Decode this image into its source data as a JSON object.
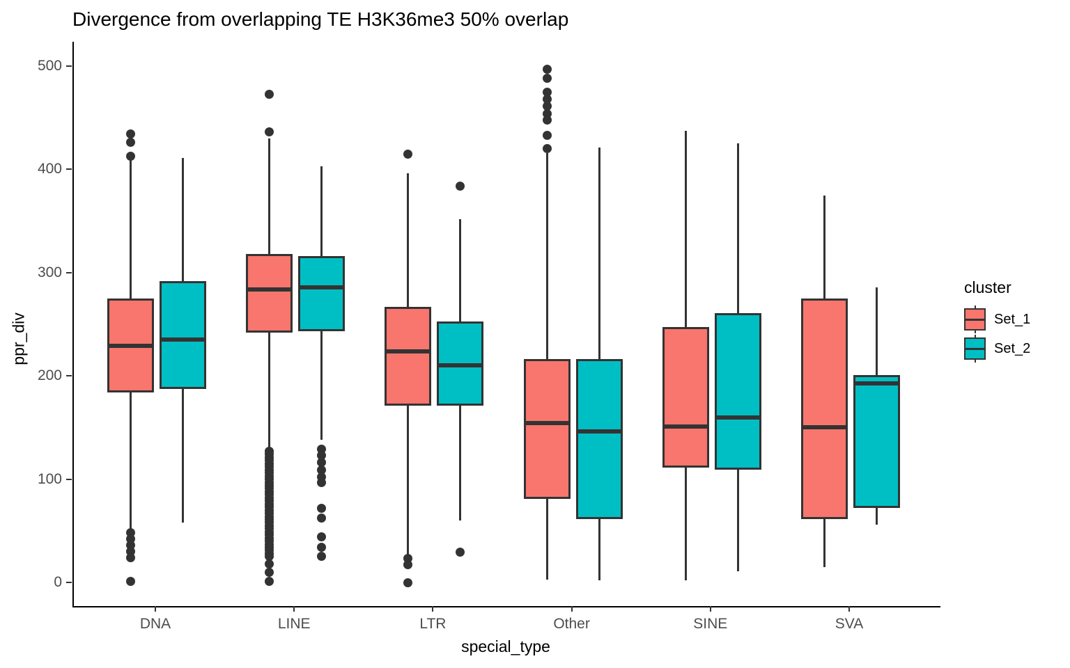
{
  "chart_data": {
    "type": "boxplot",
    "title": "Divergence from overlapping TE H3K36me3 50% overlap",
    "xlabel": "special_type",
    "ylabel": "ppr_div",
    "ylim": [
      0,
      500
    ],
    "yticks": [
      0,
      100,
      200,
      300,
      400,
      500
    ],
    "categories": [
      "DNA",
      "LINE",
      "LTR",
      "Other",
      "SINE",
      "SVA"
    ],
    "legend": {
      "title": "cluster",
      "position": "right"
    },
    "style": {
      "box_border_color": "#333333",
      "axis_line_color": "#000000",
      "tick_label_color": "#4D4D4D",
      "grid": "off"
    },
    "series": [
      {
        "name": "Set_1",
        "color": "#F8766D",
        "boxes": [
          {
            "category": "DNA",
            "whisker_low": 50,
            "q1": 184,
            "median": 229,
            "q3": 275,
            "whisker_high": 412,
            "outliers_high": [
              434,
              426,
              413
            ],
            "outliers_low": [
              48,
              42,
              36,
              30,
              24,
              1
            ]
          },
          {
            "category": "LINE",
            "whisker_low": 129,
            "q1": 242,
            "median": 284,
            "q3": 318,
            "whisker_high": 430,
            "outliers_high": [
              473,
              436
            ],
            "outliers_low": [
              127,
              124,
              121,
              118,
              115,
              112,
              109,
              106,
              103,
              100,
              97,
              94,
              91,
              88,
              85,
              82,
              79,
              76,
              73,
              70,
              67,
              64,
              61,
              58,
              55,
              52,
              49,
              46,
              43,
              40,
              37,
              34,
              31,
              28,
              25,
              18,
              10,
              1
            ]
          },
          {
            "category": "LTR",
            "whisker_low": 27,
            "q1": 171,
            "median": 224,
            "q3": 267,
            "whisker_high": 396,
            "outliers_high": [
              415
            ],
            "outliers_low": [
              23,
              17,
              0
            ]
          },
          {
            "category": "Other",
            "whisker_low": 3,
            "q1": 81,
            "median": 154,
            "q3": 216,
            "whisker_high": 416,
            "outliers_high": [
              497,
              488,
              475,
              468,
              461,
              454,
              448,
              433,
              420
            ],
            "outliers_low": []
          },
          {
            "category": "SINE",
            "whisker_low": 2,
            "q1": 111,
            "median": 151,
            "q3": 247,
            "whisker_high": 437,
            "outliers_high": [],
            "outliers_low": []
          },
          {
            "category": "SVA",
            "whisker_low": 15,
            "q1": 61,
            "median": 150,
            "q3": 275,
            "whisker_high": 375,
            "outliers_high": [],
            "outliers_low": []
          }
        ]
      },
      {
        "name": "Set_2",
        "color": "#00BFC4",
        "boxes": [
          {
            "category": "DNA",
            "whisker_low": 58,
            "q1": 187,
            "median": 235,
            "q3": 292,
            "whisker_high": 411,
            "outliers_high": [],
            "outliers_low": []
          },
          {
            "category": "LINE",
            "whisker_low": 138,
            "q1": 243,
            "median": 286,
            "q3": 316,
            "whisker_high": 403,
            "outliers_high": [],
            "outliers_low": [
              129,
              123,
              116,
              109,
              102,
              97,
              72,
              62,
              44,
              34,
              25
            ]
          },
          {
            "category": "LTR",
            "whisker_low": 60,
            "q1": 171,
            "median": 210,
            "q3": 253,
            "whisker_high": 352,
            "outliers_high": [
              384
            ],
            "outliers_low": [
              29
            ]
          },
          {
            "category": "Other",
            "whisker_low": 2,
            "q1": 61,
            "median": 146,
            "q3": 216,
            "whisker_high": 421,
            "outliers_high": [],
            "outliers_low": []
          },
          {
            "category": "SINE",
            "whisker_low": 11,
            "q1": 109,
            "median": 160,
            "q3": 261,
            "whisker_high": 425,
            "outliers_high": [],
            "outliers_low": []
          },
          {
            "category": "SVA",
            "whisker_low": 56,
            "q1": 72,
            "median": 193,
            "q3": 201,
            "whisker_high": 286,
            "outliers_high": [],
            "outliers_low": []
          }
        ]
      }
    ]
  }
}
